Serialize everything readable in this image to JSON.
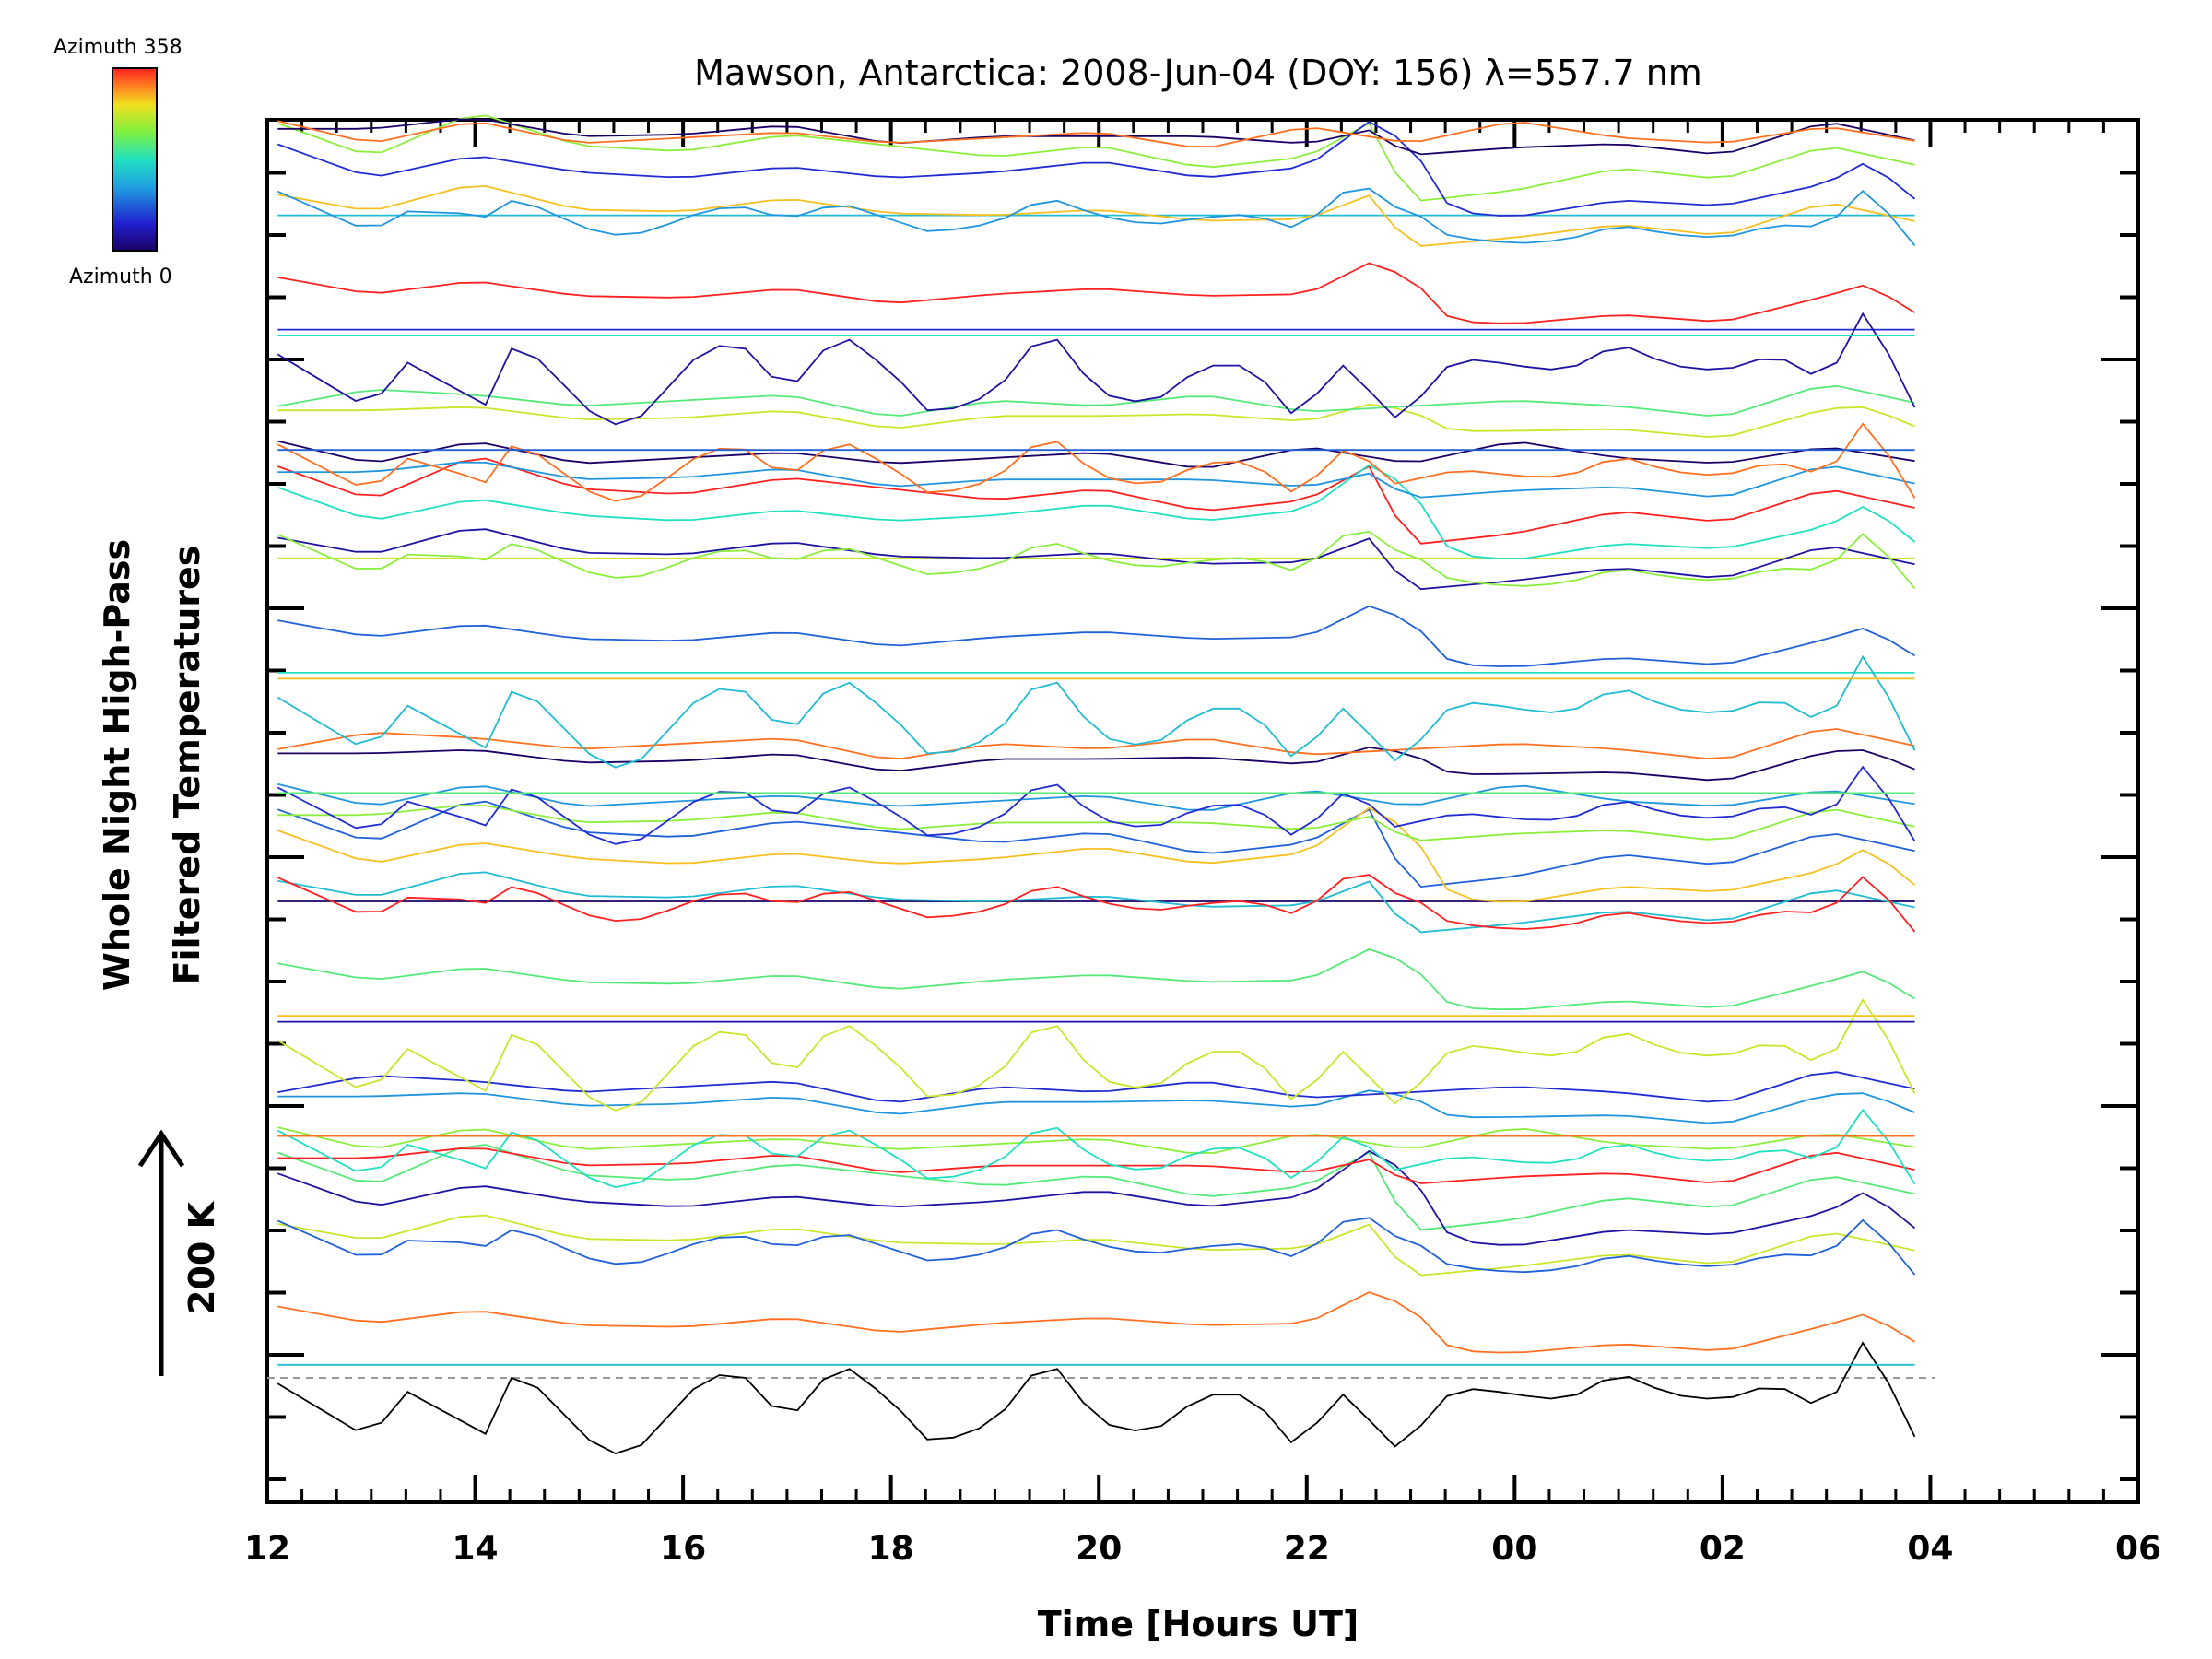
{
  "chart_data": {
    "type": "line",
    "title": "Mawson, Antarctica: 2008-Jun-04 (DOY: 156) λ=557.7 nm",
    "xlabel": "Time [Hours UT]",
    "ylabel_line1": "Whole Night High-Pass",
    "ylabel_line2": "Filtered Temperatures",
    "scale_label": "200 K",
    "colorbar": {
      "top_label": "Azimuth 358",
      "bottom_label": "Azimuth 0",
      "colormap": "rainbow"
    },
    "x_ticks": [
      "12",
      "14",
      "16",
      "18",
      "20",
      "22",
      "00",
      "02",
      "04",
      "06"
    ],
    "xlim": [
      12,
      30
    ],
    "data_x_range": [
      12,
      28
    ],
    "series_count": 54,
    "offset_per_series_K": 20,
    "baseline_dashed": true,
    "series": [
      {
        "azimuth": 0,
        "x": [
          12.1,
          13.0,
          13.3,
          14.1,
          14.4,
          15.2,
          15.5,
          16.1,
          16.5,
          17.0,
          17.5,
          18.0,
          18.4,
          19.0,
          19.5,
          20.0,
          20.5,
          21.0,
          21.5,
          21.8,
          22.0,
          22.4,
          22.8,
          23.2,
          23.4,
          23.7,
          24.0,
          24.5,
          25.0,
          25.5,
          26.0,
          26.5,
          27.0,
          27.4,
          27.8,
          28.0
        ],
        "y": [
          -5,
          -55,
          -10,
          -50,
          10,
          -65,
          -70,
          -10,
          10,
          -40,
          15,
          -20,
          -60,
          -40,
          20,
          -40,
          -50,
          -15,
          -15,
          -60,
          -50,
          -10,
          -65,
          -35,
          -10,
          -10,
          -15,
          -20,
          5,
          -15,
          -20,
          -5,
          -30,
          40,
          -50,
          -60
        ]
      },
      {
        "azimuth": 90,
        "x": [
          12.1,
          13.0,
          14.0,
          15.0,
          16.0,
          17.0,
          18.0,
          19.0,
          20.0,
          21.0,
          22.0,
          22.6,
          23.0,
          23.4,
          24.0,
          25.0,
          26.0,
          27.0,
          27.4,
          28.0
        ],
        "y": [
          60,
          30,
          50,
          35,
          30,
          40,
          30,
          35,
          45,
          30,
          40,
          80,
          60,
          0,
          -5,
          10,
          5,
          25,
          45,
          0
        ]
      },
      {
        "azimuth": 180,
        "x": [
          12.1,
          13.0,
          14.0,
          15.0,
          16.0,
          17.0,
          18.0,
          19.0,
          20.0,
          21.0,
          22.0,
          23.0,
          24.0,
          25.0,
          26.0,
          27.0,
          28.0
        ],
        "y": [
          10,
          25,
          20,
          10,
          15,
          20,
          0,
          15,
          10,
          20,
          5,
          10,
          15,
          10,
          0,
          30,
          10
        ]
      },
      {
        "azimuth": 270,
        "x": [
          12.1,
          13.0,
          14.0,
          15.0,
          16.0,
          17.0,
          18.0,
          19.0,
          20.0,
          21.0,
          22.0,
          22.6,
          23.0,
          24.0,
          25.0,
          26.0,
          27.0,
          28.0
        ],
        "y": [
          140,
          110,
          150,
          120,
          115,
          130,
          120,
          110,
          120,
          100,
          110,
          140,
          70,
          80,
          100,
          90,
          120,
          100
        ]
      },
      {
        "azimuth": 358,
        "x": [
          12.1,
          13.0,
          14.0,
          15.0,
          16.0,
          17.0,
          18.0,
          19.0,
          20.0,
          21.0,
          22.0,
          23.0,
          24.0,
          25.0,
          26.0,
          27.0,
          28.0
        ],
        "y": [
          1040,
          1020,
          1040,
          1020,
          1025,
          1030,
          1020,
          1025,
          1030,
          1015,
          1035,
          1020,
          1040,
          1025,
          1020,
          1035,
          1020
        ]
      }
    ]
  }
}
